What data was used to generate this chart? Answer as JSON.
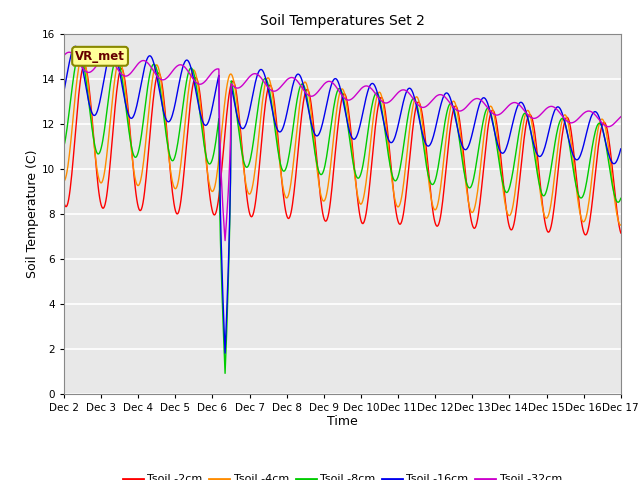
{
  "title": "Soil Temperatures Set 2",
  "xlabel": "Time",
  "ylabel": "Soil Temperature (C)",
  "ylim": [
    0,
    16
  ],
  "yticks": [
    0,
    2,
    4,
    6,
    8,
    10,
    12,
    14,
    16
  ],
  "x_labels": [
    "Dec 2",
    "Dec 3",
    "Dec 4",
    "Dec 5",
    "Dec 6",
    "Dec 7",
    "Dec 8",
    "Dec 9",
    "Dec 10",
    "Dec 11",
    "Dec 12",
    "Dec 13",
    "Dec 14",
    "Dec 15",
    "Dec 16",
    "Dec 17"
  ],
  "colors": {
    "Tsoil -2cm": "#FF0000",
    "Tsoil -4cm": "#FF8C00",
    "Tsoil -8cm": "#00CC00",
    "Tsoil -16cm": "#0000EE",
    "Tsoil -32cm": "#CC00CC"
  },
  "background_color": "#E8E8E8",
  "grid_color": "#FFFFFF",
  "figsize": [
    6.4,
    4.8
  ],
  "dpi": 100
}
